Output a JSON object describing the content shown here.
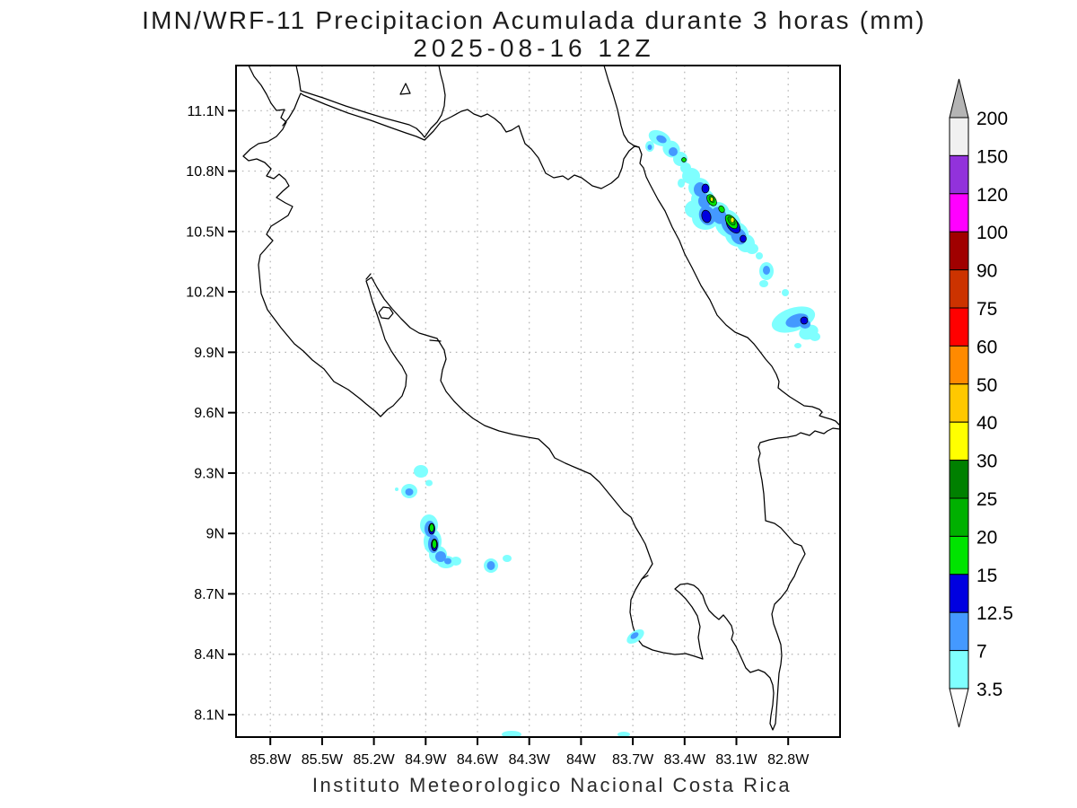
{
  "title": {
    "line1": "IMN/WRF-11 Precipitacion Acumulada durante 3 horas (mm)",
    "line2": "2025-08-16 12Z"
  },
  "footer": "Instituto Meteorologico Nacional Costa Rica",
  "axes": {
    "lat_ticks": [
      "11.1N",
      "10.8N",
      "10.5N",
      "10.2N",
      "9.9N",
      "9.6N",
      "9.3N",
      "9N",
      "8.7N",
      "8.4N",
      "8.1N"
    ],
    "lon_ticks": [
      "85.8W",
      "85.5W",
      "85.2W",
      "84.9W",
      "84.6W",
      "84.3W",
      "84W",
      "83.7W",
      "83.4W",
      "83.1W",
      "82.8W"
    ]
  },
  "colorbar": {
    "levels": [
      "200",
      "150",
      "120",
      "100",
      "90",
      "75",
      "60",
      "50",
      "40",
      "30",
      "25",
      "20",
      "15",
      "12.5",
      "7",
      "3.5"
    ],
    "cell_colors": [
      "#F1F1F1",
      "#9232DB",
      "#FF00FF",
      "#A00000",
      "#CC3300",
      "#FF0000",
      "#FF8A00",
      "#FFC800",
      "#FFFF00",
      "#008000",
      "#00B000",
      "#00E400",
      "#0000E0",
      "#4499FF",
      "#7FFFFF"
    ],
    "over_color": "#B4B4B4",
    "under_color": "#FFFFFF"
  },
  "map": {
    "region": "Costa Rica",
    "precipitation_areas": [
      {
        "location": "Caribbean coastal band from 10.95N 83.6W to 10.45N 83.0W",
        "peak_value_mm": "30-40 (two small yellow cores), widespread 3.5-15"
      },
      {
        "location": "Offshore Caribbean cell near 10.05N 82.8W",
        "peak_value_mm": "12.5-15"
      },
      {
        "location": "Pacific offshore band near 9.0N 84.9W",
        "peak_value_mm": "15-25 (two green cores)"
      },
      {
        "location": "Small Pacific cells near 8.95N 84.55W and 9.3N 84.9W",
        "peak_value_mm": "7-12.5"
      },
      {
        "location": "Small cell near Golfo Dulce 8.5N 83.7W",
        "peak_value_mm": "7-12.5"
      }
    ]
  }
}
